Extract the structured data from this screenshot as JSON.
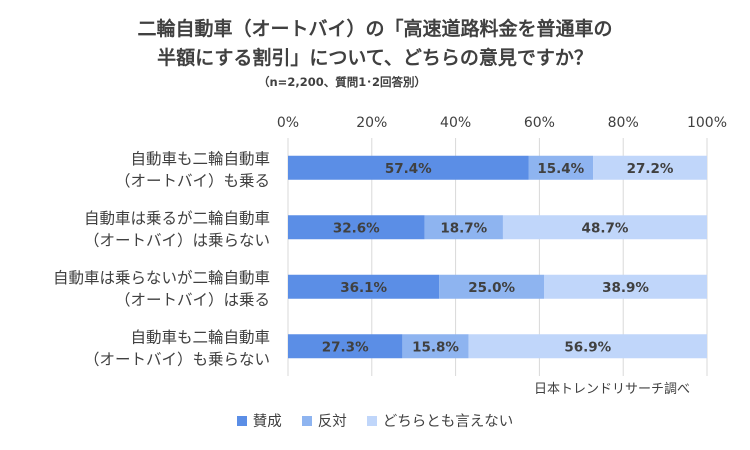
{
  "title_line1": "二輪自動車（オートバイ）の「高速道路料金を普通車の",
  "title_line2": "半額にする割引」について、どちらの意見ですか？",
  "subtitle": "（n=2,200、質問1･2回答別）",
  "source_note": "日本トレンドリサーチ調べ",
  "colors": {
    "series": [
      "#5b8ee6",
      "#8eb4f0",
      "#c0d6fa"
    ],
    "text": "#404040",
    "grid": "#d9d9d9"
  },
  "chart_data": {
    "type": "bar",
    "orientation": "horizontal-stacked-100",
    "categories": [
      [
        "自動車も二輪自動車",
        "（オートバイ）も乗る"
      ],
      [
        "自動車は乗るが二輪自動車",
        "（オートバイ）は乗らない"
      ],
      [
        "自動車は乗らないが二輪自動車",
        "（オートバイ）は乗る"
      ],
      [
        "自動車も二輪自動車",
        "（オートバイ）も乗らない"
      ]
    ],
    "series": [
      {
        "name": "賛成",
        "values": [
          57.4,
          32.6,
          36.1,
          27.3
        ]
      },
      {
        "name": "反対",
        "values": [
          15.4,
          18.7,
          25.0,
          15.8
        ]
      },
      {
        "name": "どちらとも言えない",
        "values": [
          27.2,
          48.7,
          38.9,
          56.9
        ]
      }
    ],
    "value_labels": [
      [
        "57.4%",
        "15.4%",
        "27.2%"
      ],
      [
        "32.6%",
        "18.7%",
        "48.7%"
      ],
      [
        "36.1%",
        "25.0%",
        "38.9%"
      ],
      [
        "27.3%",
        "15.8%",
        "56.9%"
      ]
    ],
    "xticks": [
      "0%",
      "20%",
      "40%",
      "60%",
      "80%",
      "100%"
    ],
    "xlim": [
      0,
      100
    ],
    "grid": true,
    "legend_position": "bottom"
  }
}
